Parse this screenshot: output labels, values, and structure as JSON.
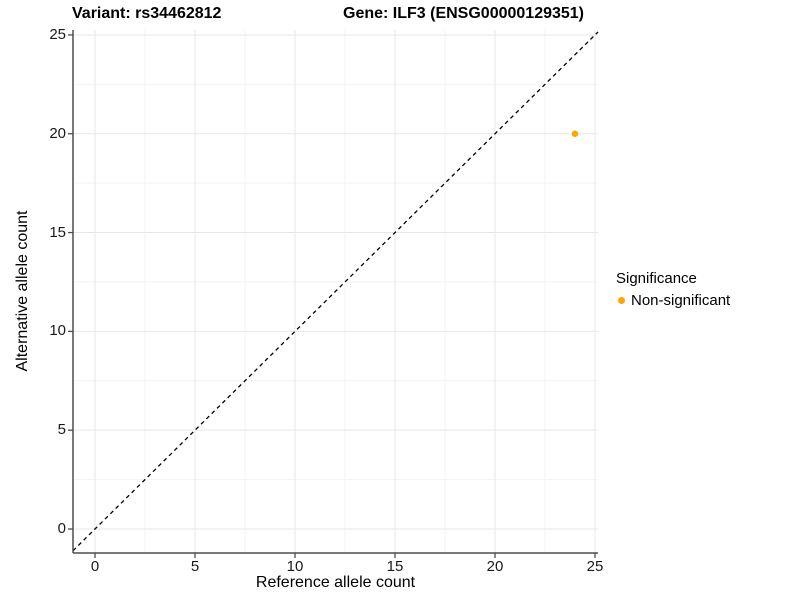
{
  "titles": {
    "variant": "Variant: rs34462812",
    "gene": "Gene: ILF3 (ENSG00000129351)"
  },
  "axes": {
    "x": {
      "label": "Reference allele count",
      "ticks": [
        0,
        5,
        10,
        15,
        20,
        25
      ],
      "minor_ticks": [
        2.5,
        7.5,
        12.5,
        17.5,
        22.5
      ],
      "range": [
        -1.1,
        25.15
      ]
    },
    "y": {
      "label": "Alternative allele count",
      "ticks": [
        0,
        5,
        10,
        15,
        20,
        25
      ],
      "minor_ticks": [
        2.5,
        7.5,
        12.5,
        17.5,
        22.5
      ],
      "range": [
        -1.215,
        25.25
      ]
    }
  },
  "legend": {
    "title": "Significance",
    "items": [
      {
        "label": "Non-significant",
        "color": "#FFA500"
      }
    ]
  },
  "chart_data": {
    "type": "scatter",
    "title": "Variant: rs34462812 — Gene: ILF3 (ENSG00000129351)",
    "xlabel": "Reference allele count",
    "ylabel": "Alternative allele count",
    "xlim": [
      -1.1,
      25.15
    ],
    "ylim": [
      -1.215,
      25.25
    ],
    "grid": "on",
    "legend_position": "right",
    "series": [
      {
        "name": "Non-significant",
        "color": "#FFA500",
        "points": [
          {
            "x": 24,
            "y": 20
          }
        ]
      }
    ],
    "reference_line": {
      "type": "identity",
      "equation": "y = x",
      "style": "dashed",
      "color": "#000000"
    }
  },
  "colors": {
    "point": "#FFA500",
    "axis_line": "#4d4d4d",
    "grid_major": "#e7e7e7",
    "grid_minor": "#f3f3f3",
    "background": "#ffffff"
  }
}
